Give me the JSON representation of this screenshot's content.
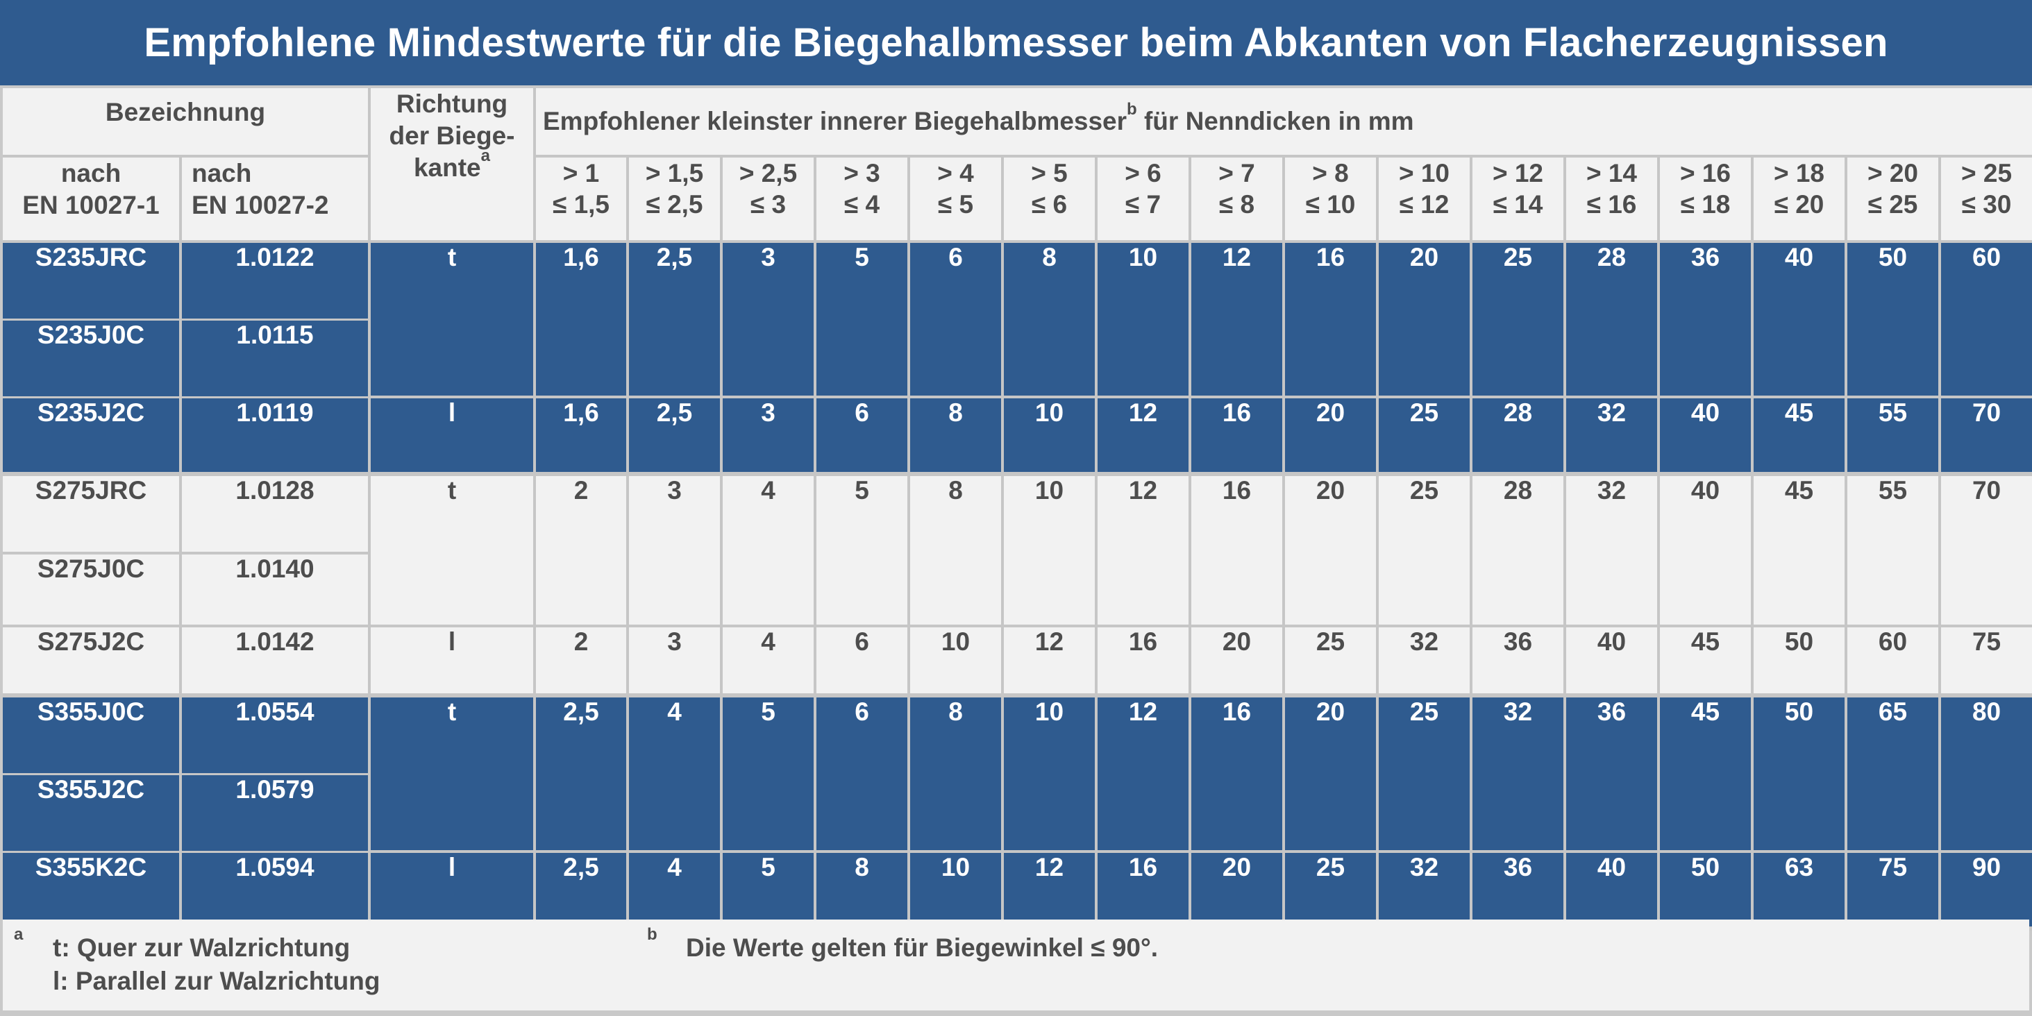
{
  "title": "Empfohlene Mindestwerte für die Biegehalbmesser beim Abkanten von Flacherzeugnissen",
  "header": {
    "bezeichnung": "Bezeichnung",
    "richtung_line1": "Richtung",
    "richtung_line2": "der Biege-",
    "richtung_line3": "kante",
    "richtung_sup": "a",
    "radius_title_pre": "Empfohlener kleinster innerer Biegehalbmesser",
    "radius_title_sup": "b",
    "radius_title_post": " für Nenndicken in mm",
    "en1_line1": "nach",
    "en1_line2": "EN 10027-1",
    "en2_line1": "nach",
    "en2_line2": "EN 10027-2",
    "thickness": [
      {
        "l1": "> 1",
        "l2": "≤  1,5"
      },
      {
        "l1": "> 1,5",
        "l2": "≤  2,5"
      },
      {
        "l1": "> 2,5",
        "l2": "≤  3"
      },
      {
        "l1": "> 3",
        "l2": "≤ 4"
      },
      {
        "l1": "> 4",
        "l2": "≤ 5"
      },
      {
        "l1": "> 5",
        "l2": "≤ 6"
      },
      {
        "l1": "> 6",
        "l2": "≤ 7"
      },
      {
        "l1": "> 7",
        "l2": "≤ 8"
      },
      {
        "l1": "> 8",
        "l2": "≤ 10"
      },
      {
        "l1": "> 10",
        "l2": "≤ 12"
      },
      {
        "l1": "> 12",
        "l2": "≤ 14"
      },
      {
        "l1": "> 14",
        "l2": "≤ 16"
      },
      {
        "l1": "> 16",
        "l2": "≤ 18"
      },
      {
        "l1": "> 18",
        "l2": "≤ 20"
      },
      {
        "l1": "> 20",
        "l2": "≤ 25"
      },
      {
        "l1": "> 25",
        "l2": "≤ 30"
      }
    ]
  },
  "groups": [
    {
      "t_rows": [
        [
          "S235JRC",
          "1.0122"
        ],
        [
          "S235J0C",
          "1.0115"
        ]
      ],
      "t_dir": "t",
      "t_values": [
        "1,6",
        "2,5",
        "3",
        "5",
        "6",
        "8",
        "10",
        "12",
        "16",
        "20",
        "25",
        "28",
        "36",
        "40",
        "50",
        "60"
      ],
      "l_row": [
        "S235J2C",
        "1.0119"
      ],
      "l_dir": "l",
      "l_values": [
        "1,6",
        "2,5",
        "3",
        "6",
        "8",
        "10",
        "12",
        "16",
        "20",
        "25",
        "28",
        "32",
        "40",
        "45",
        "55",
        "70"
      ]
    },
    {
      "t_rows": [
        [
          "S275JRC",
          "1.0128"
        ],
        [
          "S275J0C",
          "1.0140"
        ]
      ],
      "t_dir": "t",
      "t_values": [
        "2",
        "3",
        "4",
        "5",
        "8",
        "10",
        "12",
        "16",
        "20",
        "25",
        "28",
        "32",
        "40",
        "45",
        "55",
        "70"
      ],
      "l_row": [
        "S275J2C",
        "1.0142"
      ],
      "l_dir": "l",
      "l_values": [
        "2",
        "3",
        "4",
        "6",
        "10",
        "12",
        "16",
        "20",
        "25",
        "32",
        "36",
        "40",
        "45",
        "50",
        "60",
        "75"
      ]
    },
    {
      "t_rows": [
        [
          "S355J0C",
          "1.0554"
        ],
        [
          "S355J2C",
          "1.0579"
        ]
      ],
      "t_dir": "t",
      "t_values": [
        "2,5",
        "4",
        "5",
        "6",
        "8",
        "10",
        "12",
        "16",
        "20",
        "25",
        "32",
        "36",
        "45",
        "50",
        "65",
        "80"
      ],
      "l_row": [
        "S355K2C",
        "1.0594"
      ],
      "l_dir": "l",
      "l_values": [
        "2,5",
        "4",
        "5",
        "8",
        "10",
        "12",
        "16",
        "20",
        "25",
        "32",
        "36",
        "40",
        "50",
        "63",
        "75",
        "90"
      ]
    }
  ],
  "footnotes": {
    "a_mark": "a",
    "a_line1": "t: Quer zur Walzrichtung",
    "a_line2": "l: Parallel zur Walzrichtung",
    "b_mark": "b",
    "b_line1": "Die Werte gelten für Biegewinkel ≤ 90°."
  },
  "colors": {
    "title_bg": "#2f5b8f",
    "band_blue": "#2f5b8f",
    "band_light": "#f2f2f2",
    "grid": "#c6c6c6",
    "text_dark": "#4d4d4d"
  }
}
